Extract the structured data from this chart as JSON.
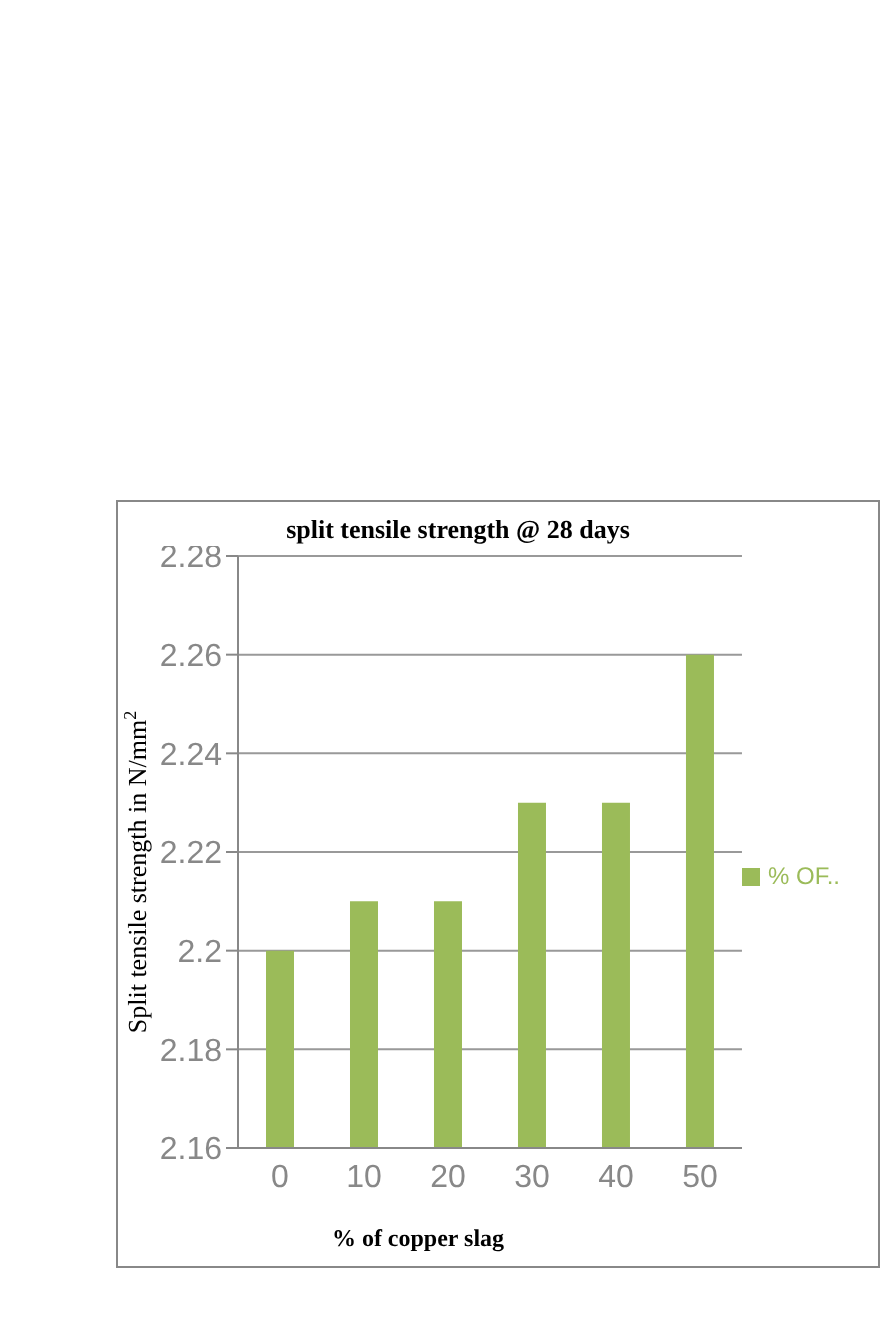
{
  "chart_data": {
    "type": "bar",
    "title": "split tensile strength @ 28 days",
    "xlabel": "% of copper slag",
    "ylabel": "Split tensile strength in N/mm$^{2}$",
    "categories": [
      "0",
      "10",
      "20",
      "30",
      "40",
      "50"
    ],
    "series": [
      {
        "name": "% OF..",
        "color": "#9bbb59",
        "values": [
          2.2,
          2.21,
          2.21,
          2.23,
          2.23,
          2.26
        ]
      }
    ],
    "ylim": [
      2.16,
      2.28
    ],
    "yticks": [
      2.16,
      2.18,
      2.2,
      2.22,
      2.24,
      2.26,
      2.28
    ],
    "grid": "y",
    "legend": "right"
  }
}
